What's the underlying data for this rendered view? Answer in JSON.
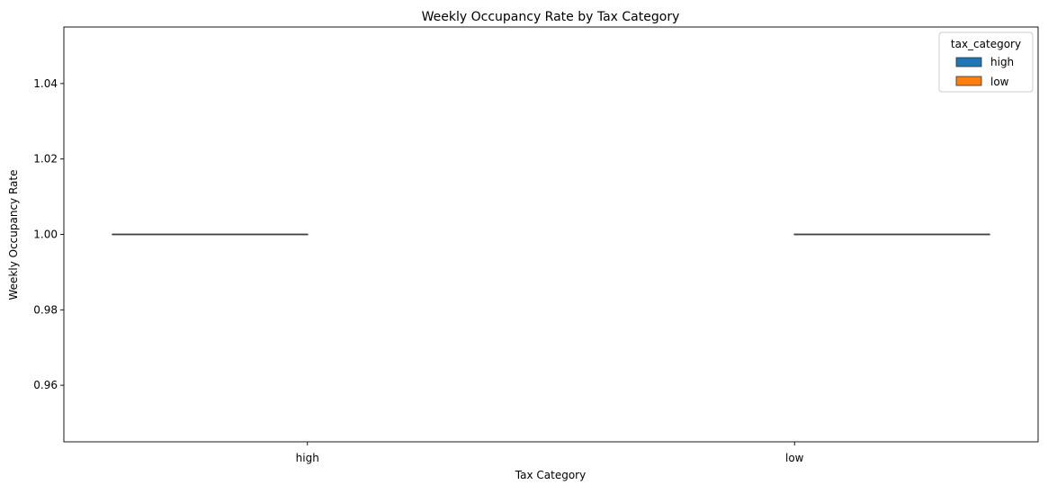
{
  "chart_data": {
    "type": "box",
    "title": "Weekly Occupancy Rate by Tax Category",
    "xlabel": "Tax Category",
    "ylabel": "Weekly Occupancy Rate",
    "categories": [
      "high",
      "low"
    ],
    "ylim": [
      0.945,
      1.055
    ],
    "yticks": [
      0.96,
      0.98,
      1.0,
      1.02,
      1.04
    ],
    "ytick_labels": [
      "0.96",
      "0.98",
      "1.00",
      "1.02",
      "1.04"
    ],
    "series": [
      {
        "name": "high",
        "category": "high",
        "color": "#1f77b4",
        "min": 1.0,
        "q1": 1.0,
        "median": 1.0,
        "q3": 1.0,
        "max": 1.0
      },
      {
        "name": "low",
        "category": "low",
        "color": "#ff7f0e",
        "min": 1.0,
        "q1": 1.0,
        "median": 1.0,
        "q3": 1.0,
        "max": 1.0
      }
    ],
    "legend": {
      "title": "tax_category",
      "placement": "top-right",
      "entries": [
        "high",
        "low"
      ]
    },
    "grid": false
  }
}
